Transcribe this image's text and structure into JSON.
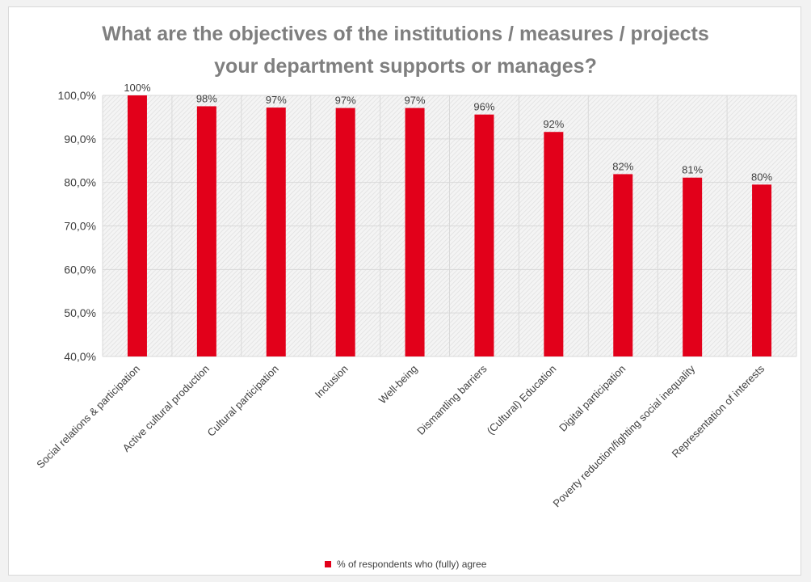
{
  "chart_data": {
    "type": "bar",
    "title": "What are the objectives of the institutions / measures / projects your department supports or manages?",
    "title_lines": [
      "What are the objectives of the institutions / measures / projects",
      "your department supports or manages?"
    ],
    "categories": [
      "Social relations & participation",
      "Active cultural production",
      "Cultural participation",
      "Inclusion",
      "Well-being",
      "Dismantling barriers",
      "(Cultural) Education",
      "Digital participation",
      "Poverty reduction/fighting social inequality",
      "Representation of interests"
    ],
    "series": [
      {
        "name": "% of respondents who (fully) agree",
        "values": [
          100,
          97.5,
          97.2,
          97.1,
          97.1,
          95.6,
          91.6,
          81.9,
          81.1,
          79.5
        ],
        "labels": [
          "100%",
          "98%",
          "97%",
          "97%",
          "97%",
          "96%",
          "92%",
          "82%",
          "81%",
          "80%"
        ],
        "color": "#e2001a"
      }
    ],
    "ylim": [
      40,
      100
    ],
    "yticks": [
      40,
      50,
      60,
      70,
      80,
      90,
      100
    ],
    "ytick_labels": [
      "40,0%",
      "50,0%",
      "60,0%",
      "70,0%",
      "80,0%",
      "90,0%",
      "100,0%"
    ],
    "xlabel": "",
    "ylabel": "",
    "grid": true,
    "legend_position": "bottom"
  }
}
